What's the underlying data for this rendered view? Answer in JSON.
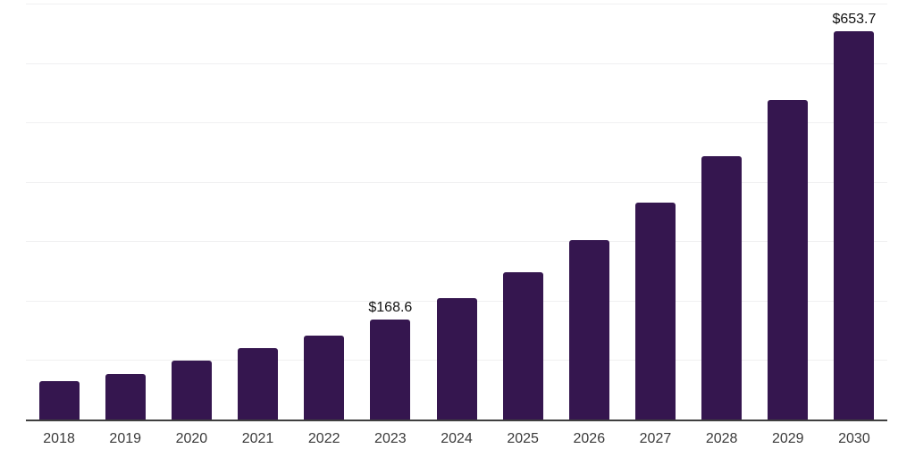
{
  "chart_data": {
    "type": "bar",
    "categories": [
      "2018",
      "2019",
      "2020",
      "2021",
      "2022",
      "2023",
      "2024",
      "2025",
      "2026",
      "2027",
      "2028",
      "2029",
      "2030"
    ],
    "values": [
      64.0,
      75.9,
      98.8,
      119.7,
      140.5,
      168.6,
      204.6,
      248.3,
      301.3,
      365.6,
      443.7,
      538.4,
      653.7
    ],
    "value_labels": [
      {
        "category": "2023",
        "text": "$168.6"
      },
      {
        "category": "2030",
        "text": "$653.7"
      }
    ],
    "ylim": [
      0,
      700
    ],
    "gridline_step": 100,
    "grid": "horizontal-only",
    "legend": "none",
    "y_axis_tick_labels": "none",
    "currency_prefix": "$",
    "colors": {
      "bar": "#35164f",
      "axis_line": "#3f3f3f",
      "gridline": "#f0f0f1",
      "tick_label": "#3a3a3a",
      "value_label": "#111111",
      "background": "#ffffff"
    }
  }
}
